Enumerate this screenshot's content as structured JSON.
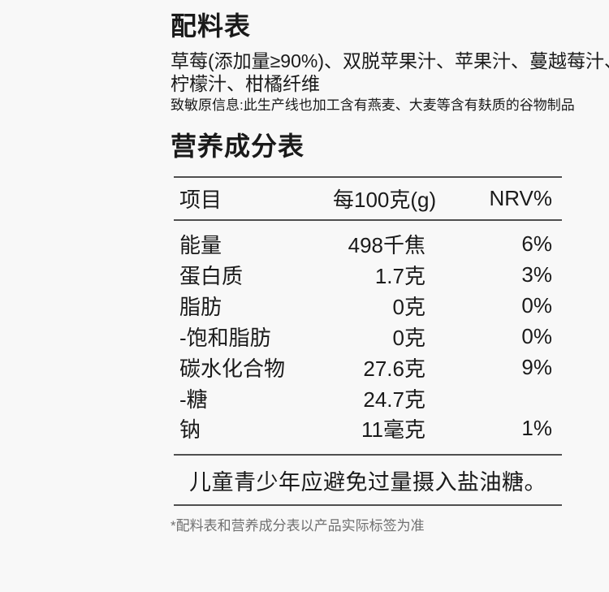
{
  "colors": {
    "background": "#f8f8f8",
    "text": "#1a1a1a",
    "rule_line": "#4f4f4f",
    "footnote_gray": "#707070"
  },
  "ingredients": {
    "title": "配料表",
    "text": "草莓(添加量≥90%)、双脱苹果汁、苹果汁、蔓越莓汁、柠檬汁、柑橘纤维",
    "text_lines": [
      "草莓(添加量≥90%)、双脱苹果汁、苹果汁、蔓越莓汁、",
      "柠檬汁、柑橘纤维"
    ],
    "allergen_info": "致敏原信息:此生产线也加工含有燕麦、大麦等含有麸质的谷物制品"
  },
  "nutrition": {
    "title": "营养成分表",
    "header": {
      "item": "项目",
      "per": "每100克(g)",
      "nrv": "NRV%"
    },
    "rows": [
      {
        "name": "能量",
        "value": "498千焦",
        "nrv": "6%"
      },
      {
        "name": "蛋白质",
        "value": "1.7克",
        "nrv": "3%"
      },
      {
        "name": "脂肪",
        "value": "0克",
        "nrv": "0%"
      },
      {
        "name": "-饱和脂肪",
        "value": "0克",
        "nrv": "0%"
      },
      {
        "name": "碳水化合物",
        "value": "27.6克",
        "nrv": "9%"
      },
      {
        "name": "-糖",
        "value": "24.7克",
        "nrv": ""
      },
      {
        "name": "钠",
        "value": "11毫克",
        "nrv": "1%"
      }
    ],
    "statement": "儿童青少年应避免过量摄入盐油糖。"
  },
  "footnote": "*配料表和营养成分表以产品实际标签为准"
}
